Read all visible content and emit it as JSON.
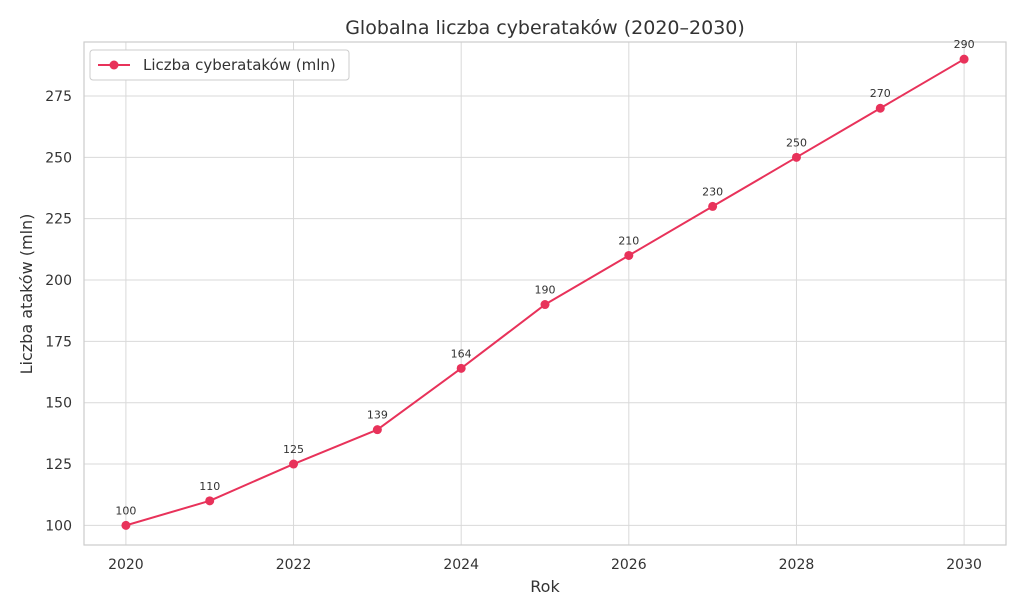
{
  "chart_data": {
    "type": "line",
    "title": "Globalna liczba cyberataków (2020–2030)",
    "xlabel": "Rok",
    "ylabel": "Liczba ataków (mln)",
    "x": [
      2020,
      2021,
      2022,
      2023,
      2024,
      2025,
      2026,
      2027,
      2028,
      2029,
      2030
    ],
    "series": [
      {
        "name": "Liczba cyberataków (mln)",
        "values": [
          100,
          110,
          125,
          139,
          164,
          190,
          210,
          230,
          250,
          270,
          290
        ],
        "labels": [
          "100",
          "110",
          "125",
          "139",
          "164",
          "190",
          "210",
          "230",
          "250",
          "270",
          "290"
        ],
        "color": "#e8325a"
      }
    ],
    "xticks": [
      2020,
      2022,
      2024,
      2026,
      2028,
      2030
    ],
    "yticks": [
      100,
      125,
      150,
      175,
      200,
      225,
      250,
      275
    ],
    "xlim": [
      2019.5,
      2030.5
    ],
    "ylim": [
      92,
      297
    ],
    "grid": true,
    "legend_position": "top-left"
  }
}
